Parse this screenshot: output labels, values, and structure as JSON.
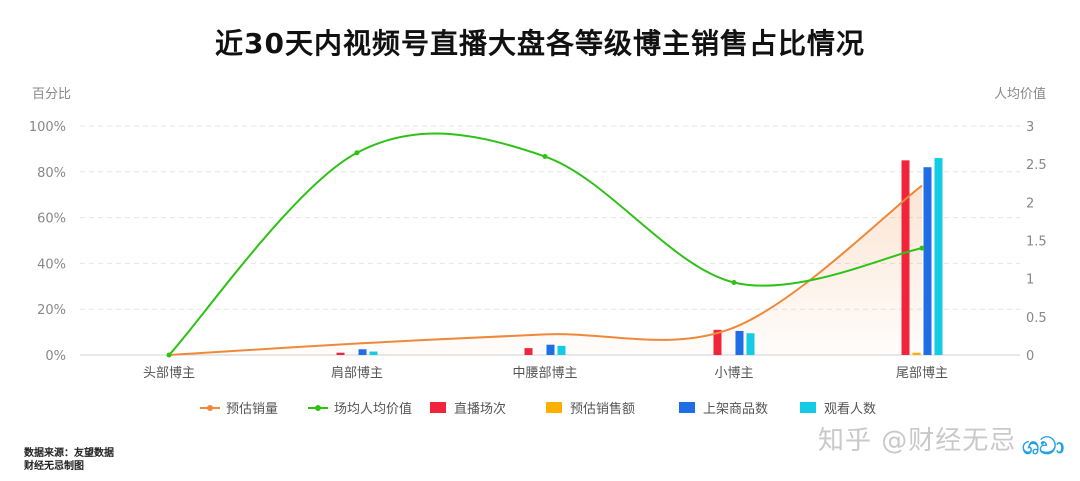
{
  "title": "近30天内视频号直播大盘各等级博主销售占比情况",
  "source": {
    "line1": "数据来源：友望数据",
    "line2": "财经无忌制图"
  },
  "watermark": "知乎 @财经无忌",
  "logo_text": "ශවා",
  "chart_data": {
    "type": "bar",
    "title": "近30天内视频号直播大盘各等级博主销售占比情况",
    "categories": [
      "头部博主",
      "肩部博主",
      "中腰部博主",
      "小博主",
      "尾部博主"
    ],
    "y_left": {
      "label": "百分比",
      "min": 0,
      "max": 100,
      "ticks": [
        "0%",
        "20%",
        "40%",
        "60%",
        "80%",
        "100%"
      ]
    },
    "y_right": {
      "label": "人均价值",
      "min": 0,
      "max": 3,
      "ticks": [
        "0",
        "0.5",
        "1",
        "1.5",
        "2",
        "2.5",
        "3"
      ]
    },
    "grid": true,
    "legend_position": "bottom",
    "series": [
      {
        "name": "预估销量",
        "type": "area-line",
        "axis": "left",
        "color": "#f0883a",
        "values": [
          0,
          5,
          9,
          12,
          74
        ]
      },
      {
        "name": "场均人均价值",
        "type": "line",
        "axis": "right",
        "color": "#2ec217",
        "values": [
          0,
          2.65,
          2.6,
          0.95,
          1.4
        ]
      },
      {
        "name": "直播场次",
        "type": "bar",
        "axis": "left",
        "color": "#f0243a",
        "values": [
          0,
          1,
          3,
          11,
          85
        ]
      },
      {
        "name": "预估销售额",
        "type": "bar",
        "axis": "left",
        "color": "#f9b000",
        "values": [
          0,
          0,
          0,
          0,
          1
        ]
      },
      {
        "name": "上架商品数",
        "type": "bar",
        "axis": "left",
        "color": "#1f6ee6",
        "values": [
          0,
          2.5,
          4.5,
          10.5,
          82
        ]
      },
      {
        "name": "观看人数",
        "type": "bar",
        "axis": "left",
        "color": "#14cbe6",
        "values": [
          0,
          1.5,
          4,
          9.5,
          86
        ]
      }
    ]
  }
}
